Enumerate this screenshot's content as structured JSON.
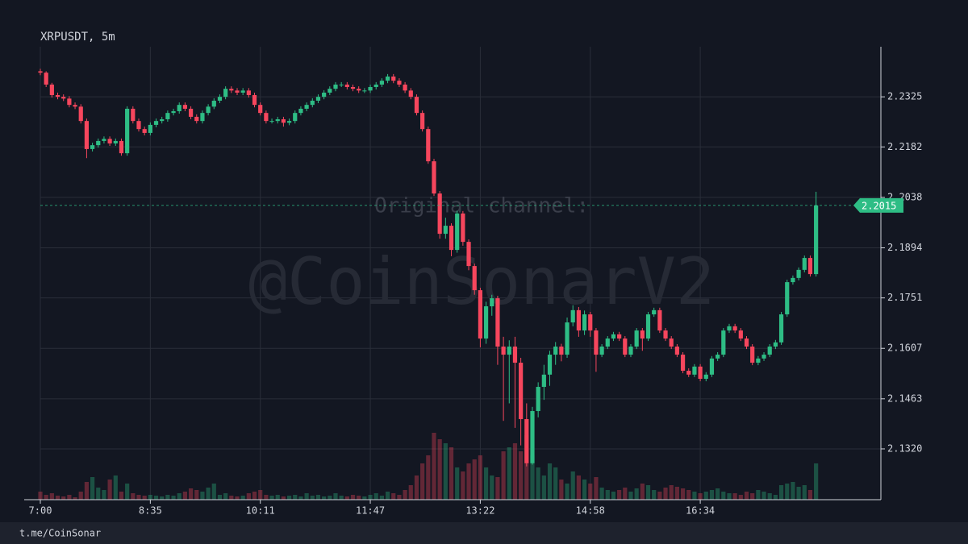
{
  "chart_data": {
    "type": "candlestick",
    "title": "XRPUSDT, 5m",
    "footer": "t.me/CoinSonar",
    "watermark": "Original channel:",
    "watermark_2": "@CoinSonarV2",
    "up_color": "#2ebd85",
    "down_color": "#f6465d",
    "grid": true,
    "last_price": 2.2015,
    "xlim": [
      0,
      145.2
    ],
    "xticks": [
      {
        "value": 0,
        "label": "7:00"
      },
      {
        "value": 19,
        "label": "8:35"
      },
      {
        "value": 38,
        "label": "10:11"
      },
      {
        "value": 57,
        "label": "11:47"
      },
      {
        "value": 76,
        "label": "13:22"
      },
      {
        "value": 95,
        "label": "14:58"
      },
      {
        "value": 114,
        "label": "16:34"
      }
    ],
    "ylim": [
      2.1175,
      2.2468
    ],
    "yticks": [
      {
        "value": 2.132,
        "label": "2.1320"
      },
      2.1463,
      2.1607,
      2.1751,
      2.1894,
      2.2038,
      2.2182,
      2.2325
    ],
    "vlim": [
      0,
      100
    ],
    "open": [
      2.2398,
      2.2394,
      2.236,
      2.233,
      2.2325,
      2.232,
      2.2302,
      2.2297,
      2.2256,
      2.2176,
      2.2187,
      2.2199,
      2.2205,
      2.2192,
      2.2199,
      2.2164,
      2.2291,
      2.2256,
      2.2233,
      2.2222,
      2.2245,
      2.2256,
      2.2261,
      2.2279,
      2.2284,
      2.2302,
      2.2291,
      2.2268,
      2.2256,
      2.2279,
      2.2297,
      2.2314,
      2.2325,
      2.2348,
      2.2343,
      2.2337,
      2.2343,
      2.233,
      2.2302,
      2.2279,
      2.2256,
      2.2256,
      2.2261,
      2.2251,
      2.2256,
      2.2279,
      2.2291,
      2.2302,
      2.2314,
      2.2325,
      2.2337,
      2.2348,
      2.236,
      2.236,
      2.2353,
      2.2348,
      2.2343,
      2.2343,
      2.2353,
      2.236,
      2.2371,
      2.2383,
      2.2371,
      2.236,
      2.2343,
      2.2325,
      2.2279,
      2.2233,
      2.2141,
      2.2049,
      2.1934,
      2.1957,
      2.1888,
      2.1992,
      2.1911,
      2.1842,
      2.1773,
      2.1635,
      2.1727,
      2.175,
      2.1612,
      2.1589,
      2.1612,
      2.1566,
      2.1405,
      2.1279,
      2.1428,
      2.1497,
      2.1532,
      2.1589,
      2.1612,
      2.1589,
      2.1681,
      2.1716,
      2.1658,
      2.1704,
      2.1658,
      2.1589,
      2.1612,
      2.1635,
      2.1647,
      2.1635,
      2.1589,
      2.1612,
      2.1658,
      2.1635,
      2.1704,
      2.1716,
      2.1658,
      2.1635,
      2.1612,
      2.1589,
      2.1543,
      2.1532,
      2.1555,
      2.152,
      2.1532,
      2.1578,
      2.1589,
      2.1658,
      2.167,
      2.1658,
      2.1635,
      2.1612,
      2.1566,
      2.1578,
      2.1589,
      2.1612,
      2.1624,
      2.1704,
      2.1796,
      2.1808,
      2.1831,
      2.1865,
      2.1819
    ],
    "high": [
      2.2405,
      2.2398,
      2.2365,
      2.2337,
      2.2332,
      2.2327,
      2.2309,
      2.2304,
      2.2263,
      2.2194,
      2.2206,
      2.2212,
      2.2212,
      2.2206,
      2.2206,
      2.2298,
      2.2298,
      2.2263,
      2.224,
      2.2252,
      2.2263,
      2.2268,
      2.2286,
      2.2291,
      2.2309,
      2.2309,
      2.2298,
      2.2275,
      2.2286,
      2.2304,
      2.2321,
      2.2332,
      2.2355,
      2.2355,
      2.235,
      2.235,
      2.235,
      2.2337,
      2.2309,
      2.2286,
      2.2263,
      2.2268,
      2.2268,
      2.2263,
      2.2286,
      2.2298,
      2.2309,
      2.2321,
      2.2332,
      2.2344,
      2.2355,
      2.2367,
      2.2367,
      2.2367,
      2.236,
      2.2355,
      2.235,
      2.236,
      2.2367,
      2.2378,
      2.239,
      2.239,
      2.2378,
      2.2367,
      2.235,
      2.2332,
      2.2286,
      2.224,
      2.2148,
      2.2056,
      2.198,
      2.1964,
      2.2,
      2.1999,
      2.1918,
      2.1849,
      2.178,
      2.174,
      2.176,
      2.1757,
      2.164,
      2.163,
      2.164,
      2.158,
      2.145,
      2.144,
      2.151,
      2.156,
      2.16,
      2.1625,
      2.162,
      2.1695,
      2.173,
      2.1725,
      2.1715,
      2.1711,
      2.1665,
      2.1619,
      2.1642,
      2.1654,
      2.1654,
      2.1642,
      2.1619,
      2.1665,
      2.1665,
      2.1711,
      2.1723,
      2.1723,
      2.1665,
      2.1642,
      2.1619,
      2.1596,
      2.155,
      2.1562,
      2.1562,
      2.1539,
      2.1585,
      2.1596,
      2.1665,
      2.1677,
      2.1677,
      2.1665,
      2.1642,
      2.1619,
      2.1585,
      2.1596,
      2.1619,
      2.1631,
      2.1711,
      2.1803,
      2.1815,
      2.1838,
      2.1872,
      2.1872,
      2.2054
    ],
    "low": [
      2.2387,
      2.2353,
      2.2323,
      2.2318,
      2.2313,
      2.2295,
      2.229,
      2.2249,
      2.215,
      2.2169,
      2.218,
      2.2192,
      2.2185,
      2.2185,
      2.2157,
      2.2157,
      2.2249,
      2.2226,
      2.2215,
      2.2215,
      2.2238,
      2.2249,
      2.2254,
      2.2272,
      2.2277,
      2.2284,
      2.2261,
      2.2249,
      2.2249,
      2.2272,
      2.229,
      2.2307,
      2.2318,
      2.2336,
      2.233,
      2.233,
      2.2323,
      2.2295,
      2.2272,
      2.2249,
      2.2249,
      2.2249,
      2.224,
      2.2244,
      2.2249,
      2.2272,
      2.2284,
      2.2295,
      2.2307,
      2.2318,
      2.233,
      2.2341,
      2.2353,
      2.2346,
      2.2341,
      2.2336,
      2.2336,
      2.2336,
      2.2346,
      2.2353,
      2.2364,
      2.2364,
      2.2353,
      2.2336,
      2.2318,
      2.2272,
      2.2226,
      2.2134,
      2.2042,
      2.192,
      2.192,
      2.187,
      2.188,
      2.19,
      2.183,
      2.176,
      2.161,
      2.162,
      2.17,
      2.156,
      2.14,
      2.145,
      2.138,
      2.133,
      2.127,
      2.1275,
      2.141,
      2.146,
      2.15,
      2.156,
      2.157,
      2.158,
      2.167,
      2.164,
      2.1645,
      2.164,
      2.154,
      2.1582,
      2.1605,
      2.1628,
      2.1628,
      2.1582,
      2.1582,
      2.1605,
      2.16,
      2.1628,
      2.1697,
      2.1651,
      2.1628,
      2.1605,
      2.1582,
      2.1536,
      2.1525,
      2.1525,
      2.1513,
      2.1513,
      2.1525,
      2.1571,
      2.1582,
      2.1651,
      2.1651,
      2.1628,
      2.1605,
      2.1559,
      2.1559,
      2.1571,
      2.1582,
      2.1605,
      2.1617,
      2.1697,
      2.1789,
      2.1801,
      2.1824,
      2.1812,
      2.1812
    ],
    "close": [
      2.2394,
      2.236,
      2.233,
      2.2325,
      2.232,
      2.2302,
      2.2297,
      2.2256,
      2.2176,
      2.2187,
      2.2199,
      2.2205,
      2.2192,
      2.2199,
      2.2164,
      2.2291,
      2.2256,
      2.2233,
      2.2222,
      2.2245,
      2.2256,
      2.2261,
      2.2279,
      2.2284,
      2.2302,
      2.2291,
      2.2268,
      2.2256,
      2.2279,
      2.2297,
      2.2314,
      2.2325,
      2.2348,
      2.2343,
      2.2337,
      2.2343,
      2.233,
      2.2302,
      2.2279,
      2.2256,
      2.2256,
      2.2261,
      2.2251,
      2.2256,
      2.2279,
      2.2291,
      2.2302,
      2.2314,
      2.2325,
      2.2337,
      2.2348,
      2.236,
      2.236,
      2.2353,
      2.2348,
      2.2343,
      2.2343,
      2.2353,
      2.236,
      2.2371,
      2.2383,
      2.2371,
      2.236,
      2.2343,
      2.2325,
      2.2279,
      2.2233,
      2.2141,
      2.2049,
      2.1934,
      2.1957,
      2.1888,
      2.1992,
      2.1911,
      2.1842,
      2.1773,
      2.1635,
      2.1727,
      2.175,
      2.1612,
      2.1589,
      2.1612,
      2.1566,
      2.1405,
      2.1279,
      2.1428,
      2.1497,
      2.1532,
      2.1589,
      2.1612,
      2.1589,
      2.1681,
      2.1716,
      2.1658,
      2.1704,
      2.1658,
      2.1589,
      2.1612,
      2.1635,
      2.1647,
      2.1635,
      2.1589,
      2.1612,
      2.1658,
      2.1635,
      2.1704,
      2.1716,
      2.1658,
      2.1635,
      2.1612,
      2.1589,
      2.1543,
      2.1532,
      2.1555,
      2.152,
      2.1532,
      2.1578,
      2.1589,
      2.1658,
      2.167,
      2.1658,
      2.1635,
      2.1612,
      2.1566,
      2.1578,
      2.1589,
      2.1612,
      2.1624,
      2.1704,
      2.1796,
      2.1808,
      2.1831,
      2.1865,
      2.1819,
      2.2015
    ],
    "volume": [
      10,
      6,
      8,
      5,
      4,
      6,
      3,
      10,
      22,
      28,
      15,
      12,
      25,
      30,
      10,
      20,
      8,
      6,
      5,
      6,
      5,
      4,
      6,
      5,
      8,
      10,
      14,
      12,
      10,
      15,
      20,
      6,
      8,
      5,
      4,
      5,
      8,
      10,
      12,
      6,
      5,
      6,
      4,
      5,
      6,
      4,
      8,
      5,
      6,
      4,
      5,
      8,
      5,
      4,
      6,
      5,
      4,
      6,
      8,
      5,
      10,
      8,
      6,
      12,
      18,
      30,
      45,
      55,
      83,
      75,
      70,
      65,
      40,
      35,
      45,
      50,
      55,
      40,
      30,
      28,
      60,
      65,
      70,
      60,
      80,
      55,
      40,
      30,
      45,
      40,
      25,
      20,
      35,
      30,
      25,
      20,
      28,
      15,
      12,
      10,
      12,
      15,
      10,
      14,
      20,
      18,
      12,
      10,
      15,
      18,
      16,
      14,
      12,
      10,
      8,
      10,
      12,
      14,
      10,
      8,
      8,
      6,
      10,
      8,
      12,
      10,
      8,
      6,
      18,
      20,
      22,
      16,
      18,
      12,
      45
    ]
  }
}
